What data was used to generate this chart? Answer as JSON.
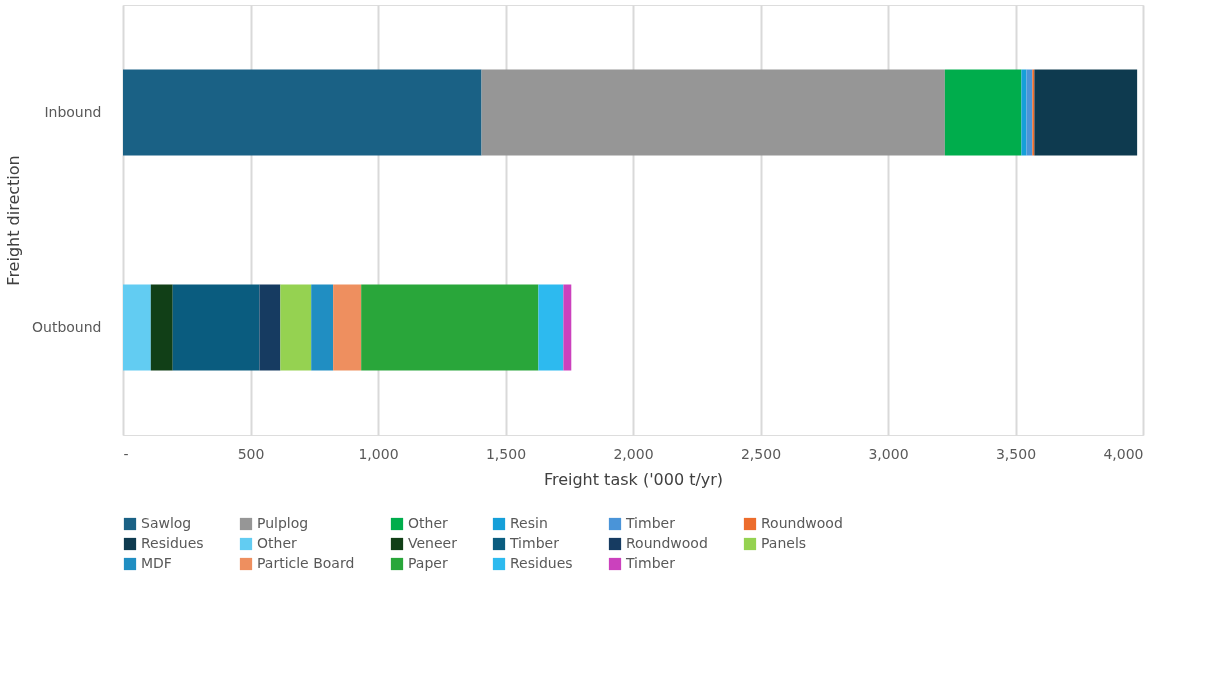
{
  "chart_data": {
    "type": "bar",
    "orientation": "horizontal",
    "stacked": true,
    "xlabel": "Freight task ('000 t/yr)",
    "ylabel": "Freight direction",
    "categories": [
      "Inbound",
      "Outbound"
    ],
    "xlim": [
      0,
      4000
    ],
    "xticks": [
      {
        "value": 0,
        "label": "-"
      },
      500,
      {
        "value": 1000,
        "label": "1,000"
      },
      {
        "value": 1500,
        "label": "1,500"
      },
      {
        "value": 2000,
        "label": "2,000"
      },
      {
        "value": 2500,
        "label": "2,500"
      },
      {
        "value": 3000,
        "label": "3,000"
      },
      {
        "value": 3500,
        "label": "3,500"
      },
      {
        "value": 4000,
        "label": "4,000"
      }
    ],
    "grid": "x",
    "legend": "bottom",
    "series": [
      {
        "name": "Sawlog",
        "color": "#1a6185",
        "values": [
          1406,
          null
        ]
      },
      {
        "name": "Pulplog",
        "color": "#969696",
        "values": [
          1817,
          null
        ]
      },
      {
        "name": "Other",
        "color": "#00ad4c",
        "values": [
          300,
          null
        ]
      },
      {
        "name": "Resin",
        "color": "#159fd9",
        "values": [
          20,
          null
        ]
      },
      {
        "name": "Timber",
        "color": "#4a94d8",
        "values": [
          23,
          null
        ]
      },
      {
        "name": "Roundwood",
        "color": "#ec6c2c",
        "values": [
          8,
          null
        ]
      },
      {
        "name": "Residues",
        "color": "#0e3a4f",
        "values": [
          403,
          null
        ]
      },
      {
        "name": "Other",
        "color": "#62ccf2",
        "values": [
          null,
          109
        ]
      },
      {
        "name": "Veneer",
        "color": "#113f17",
        "values": [
          null,
          86
        ]
      },
      {
        "name": "Timber",
        "color": "#0a5c7f",
        "values": [
          null,
          340
        ]
      },
      {
        "name": "Roundwood",
        "color": "#163b61",
        "values": [
          null,
          82
        ]
      },
      {
        "name": "Panels",
        "color": "#95d251",
        "values": [
          null,
          121
        ]
      },
      {
        "name": "MDF",
        "color": "#208ec2",
        "values": [
          null,
          86
        ]
      },
      {
        "name": "Particle Board",
        "color": "#ee8f5f",
        "values": [
          null,
          110
        ]
      },
      {
        "name": "Paper",
        "color": "#29a63a",
        "values": [
          null,
          695
        ]
      },
      {
        "name": "Residues",
        "color": "#2dbaef",
        "values": [
          null,
          98
        ]
      },
      {
        "name": "Timber",
        "color": "#cb41bd",
        "values": [
          null,
          31
        ]
      }
    ]
  }
}
